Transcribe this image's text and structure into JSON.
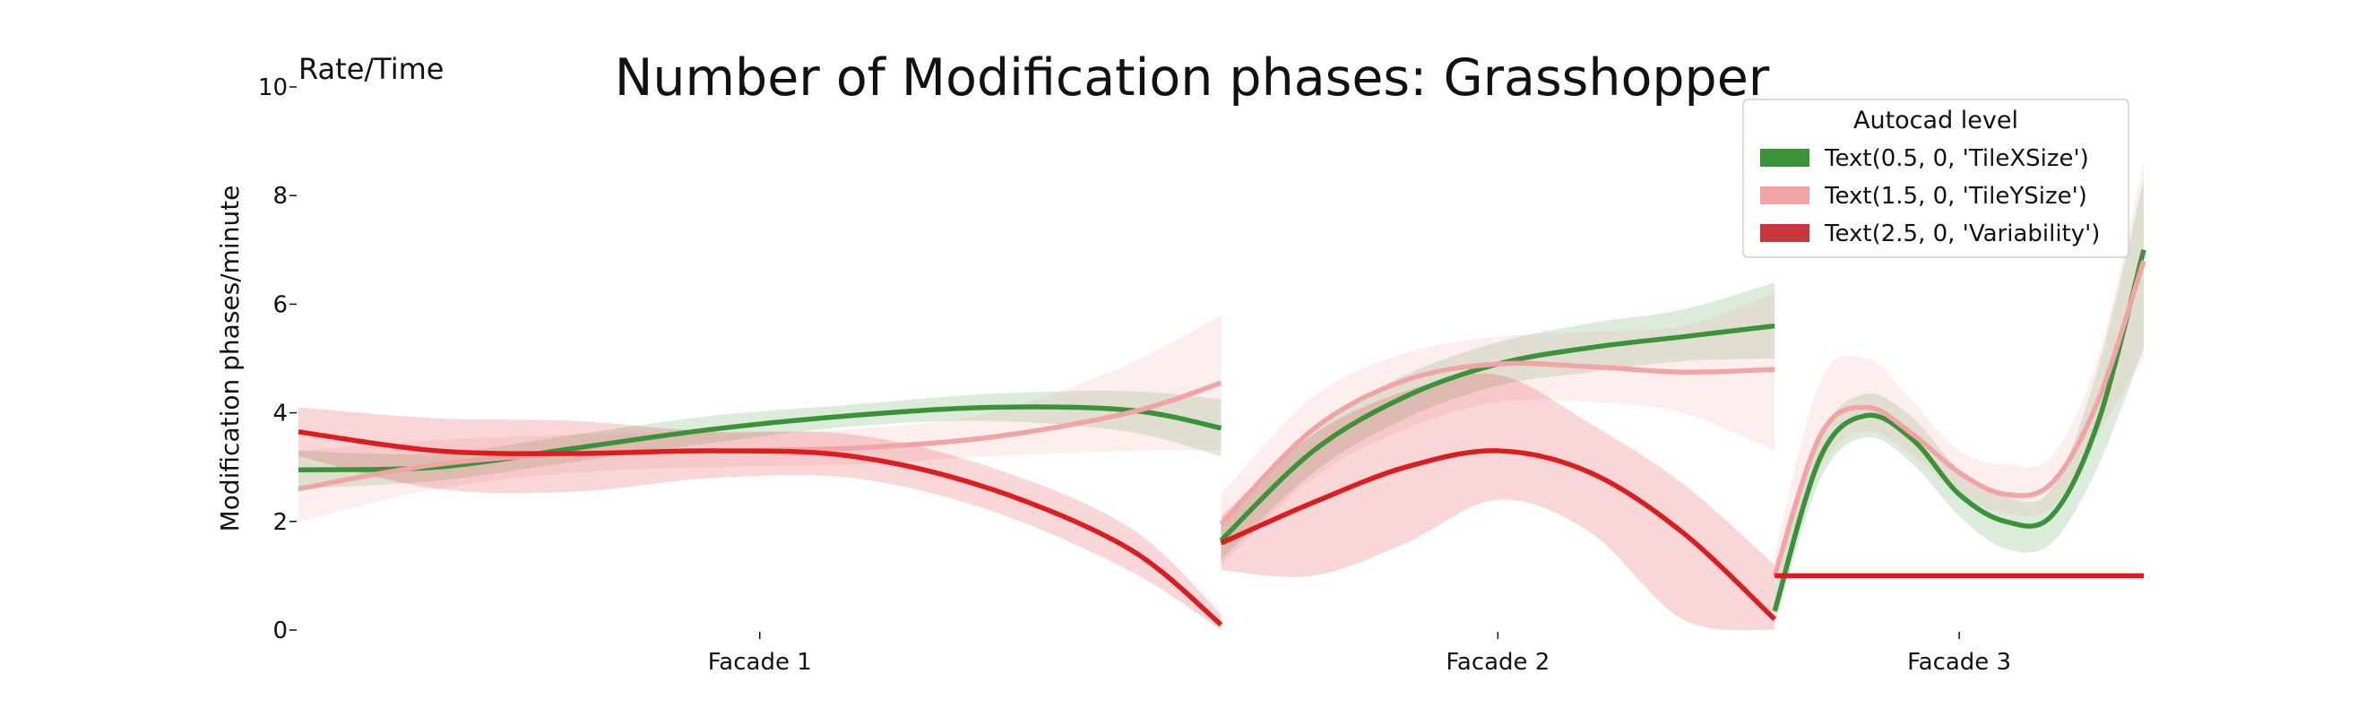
{
  "chart_data": {
    "type": "line",
    "title": "Number of Modification phases: Grasshopper",
    "ylabel": "Modification phases/minute",
    "corner_label": "Rate/Time",
    "ylim": [
      0,
      10
    ],
    "yticks": [
      0,
      2,
      4,
      6,
      8,
      10
    ],
    "categories": [
      "Facade 1",
      "Facade 2",
      "Facade 3"
    ],
    "legend": {
      "title": "Autocad level",
      "placement": "top-right",
      "entries": [
        {
          "label": "Text(0.5, 0, 'TileXSize')",
          "color": "#3a9339"
        },
        {
          "label": "Text(1.5, 0, 'TileYSize')",
          "color": "#f2a3a3"
        },
        {
          "label": "Text(2.5, 0, 'Variability')",
          "color": "#c8353a"
        }
      ]
    },
    "panels": [
      {
        "name": "Facade 1",
        "x_start": 0,
        "x_end": 1,
        "series": [
          {
            "name": "Text(0.5, 0, 'TileXSize')",
            "color": "#3a9339",
            "x": [
              0,
              0.15,
              0.3,
              0.45,
              0.6,
              0.75,
              0.9,
              1
            ],
            "values": [
              2.95,
              3.0,
              3.35,
              3.7,
              3.95,
              4.1,
              4.05,
              3.72
            ],
            "lower": [
              2.6,
              2.75,
              3.1,
              3.45,
              3.75,
              3.85,
              3.65,
              3.2
            ],
            "upper": [
              3.3,
              3.25,
              3.6,
              3.95,
              4.15,
              4.35,
              4.4,
              4.25
            ]
          },
          {
            "name": "Text(1.5, 0, 'TileYSize')",
            "color": "#f2a3a3",
            "x": [
              0,
              0.15,
              0.3,
              0.45,
              0.6,
              0.75,
              0.9,
              1
            ],
            "values": [
              2.6,
              3.05,
              3.25,
              3.3,
              3.35,
              3.55,
              4.0,
              4.55
            ],
            "lower": [
              2.0,
              2.6,
              2.9,
              3.0,
              3.05,
              3.2,
              3.3,
              3.3
            ],
            "upper": [
              3.3,
              3.5,
              3.6,
              3.65,
              3.7,
              4.0,
              4.9,
              5.8
            ]
          },
          {
            "name": "Text(2.5, 0, 'Variability')",
            "color": "#dd1c1f",
            "x": [
              0,
              0.15,
              0.3,
              0.45,
              0.6,
              0.75,
              0.9,
              1
            ],
            "values": [
              3.65,
              3.3,
              3.25,
              3.3,
              3.2,
              2.6,
              1.5,
              0.1
            ],
            "lower": [
              3.2,
              2.6,
              2.55,
              2.8,
              2.8,
              2.2,
              1.1,
              0.0
            ],
            "upper": [
              4.1,
              3.9,
              3.85,
              3.65,
              3.6,
              3.0,
              1.9,
              0.3
            ]
          }
        ]
      },
      {
        "name": "Facade 2",
        "x_start": 1,
        "x_end": 1.6,
        "series": [
          {
            "name": "Text(0.5, 0, 'TileXSize')",
            "color": "#3a9339",
            "x": [
              1.0,
              1.1,
              1.2,
              1.3,
              1.4,
              1.5,
              1.6
            ],
            "values": [
              1.65,
              3.3,
              4.3,
              4.9,
              5.2,
              5.4,
              5.6
            ],
            "lower": [
              1.3,
              2.9,
              3.9,
              4.5,
              4.75,
              4.95,
              5.0
            ],
            "upper": [
              2.0,
              3.7,
              4.7,
              5.3,
              5.65,
              5.9,
              6.4
            ]
          },
          {
            "name": "Text(1.5, 0, 'TileYSize')",
            "color": "#f2a3a3",
            "x": [
              1.0,
              1.1,
              1.2,
              1.3,
              1.4,
              1.5,
              1.6
            ],
            "values": [
              1.95,
              3.7,
              4.6,
              4.9,
              4.85,
              4.75,
              4.8
            ],
            "lower": [
              1.2,
              2.8,
              3.7,
              4.2,
              4.2,
              4.0,
              3.3
            ],
            "upper": [
              2.5,
              4.3,
              5.1,
              5.4,
              5.5,
              5.6,
              6.2
            ]
          },
          {
            "name": "Text(2.5, 0, 'Variability')",
            "color": "#dd1c1f",
            "x": [
              1.0,
              1.1,
              1.2,
              1.3,
              1.4,
              1.5,
              1.6
            ],
            "values": [
              1.6,
              2.35,
              3.0,
              3.3,
              2.9,
              1.8,
              0.2
            ],
            "lower": [
              1.1,
              1.0,
              1.6,
              2.4,
              1.8,
              0.2,
              0.0
            ],
            "upper": [
              2.1,
              3.6,
              4.4,
              4.7,
              3.8,
              2.7,
              1.2
            ]
          }
        ]
      },
      {
        "name": "Facade 3",
        "x_start": 1.6,
        "x_end": 2.0,
        "series": [
          {
            "name": "Text(0.5, 0, 'TileXSize')",
            "color": "#3a9339",
            "x": [
              1.6,
              1.65,
              1.7,
              1.75,
              1.8,
              1.85,
              1.9,
              1.95,
              2.0
            ],
            "values": [
              0.35,
              3.2,
              3.95,
              3.5,
              2.5,
              2.0,
              2.1,
              3.8,
              7.0
            ],
            "lower": [
              0.1,
              2.8,
              3.55,
              3.05,
              2.1,
              1.5,
              1.6,
              3.0,
              5.2
            ],
            "upper": [
              0.8,
              3.6,
              4.35,
              3.9,
              2.95,
              2.45,
              2.6,
              4.8,
              8.3
            ]
          },
          {
            "name": "Text(1.5, 0, 'TileYSize')",
            "color": "#f2a3a3",
            "x": [
              1.6,
              1.65,
              1.7,
              1.75,
              1.8,
              1.85,
              1.9,
              1.95,
              2.0
            ],
            "values": [
              1.0,
              3.6,
              4.1,
              3.6,
              2.9,
              2.5,
              2.7,
              4.2,
              6.8
            ],
            "lower": [
              0.5,
              3.0,
              3.65,
              3.2,
              2.5,
              2.15,
              2.25,
              3.6,
              5.0
            ],
            "upper": [
              1.4,
              4.6,
              5.0,
              4.2,
              3.3,
              3.05,
              3.2,
              5.0,
              8.6
            ]
          },
          {
            "name": "Text(2.5, 0, 'Variability')",
            "color": "#dd1c1f",
            "x": [
              1.6,
              1.7,
              1.8,
              1.9,
              2.0
            ],
            "values": [
              1.0,
              1.0,
              1.0,
              1.0,
              1.0
            ]
          }
        ]
      }
    ],
    "category_ticks": [
      {
        "label": "Facade 1",
        "x": 0.5
      },
      {
        "label": "Facade 2",
        "x": 1.3
      },
      {
        "label": "Facade 3",
        "x": 1.8
      }
    ],
    "xlim": [
      0,
      2.0
    ]
  }
}
